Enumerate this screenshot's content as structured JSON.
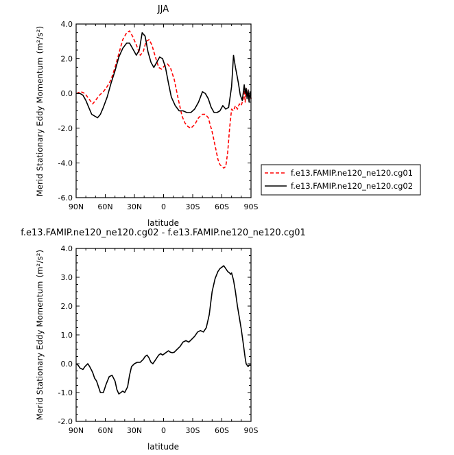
{
  "chart_data": [
    {
      "type": "line",
      "title": "JJA",
      "xlabel": "latitude",
      "ylabel_main": "Merid Stationary Eddy Momentum",
      "ylabel_unit": "(m²/s²)",
      "xlim": [
        90,
        -90
      ],
      "ylim": [
        -6.0,
        4.0
      ],
      "xticks": [
        90,
        60,
        30,
        0,
        -30,
        -60,
        -90
      ],
      "xticklabels": [
        "90N",
        "60N",
        "30N",
        "0",
        "30S",
        "60S",
        "90S"
      ],
      "yticks": [
        -6.0,
        -4.0,
        -2.0,
        0.0,
        2.0,
        4.0
      ],
      "yticklabels": [
        "-6.0",
        "-4.0",
        "-2.0",
        "0.0",
        "2.0",
        "4.0"
      ],
      "legend_position": "right",
      "series": [
        {
          "name": "f.e13.FAMIP.ne120_ne120.cg01",
          "color": "#ff0000",
          "dash": true,
          "x": [
            90,
            85,
            81,
            77,
            73,
            70,
            66,
            62,
            58,
            54,
            50,
            46,
            42,
            38,
            35,
            32,
            28,
            24,
            21,
            18,
            15,
            12,
            9,
            5,
            2,
            -1,
            -4,
            -7,
            -11,
            -15,
            -19,
            -22,
            -25,
            -28,
            -32,
            -36,
            -40,
            -43,
            -46,
            -50,
            -53,
            -56,
            -58,
            -60,
            -62,
            -64,
            -66,
            -68,
            -70,
            -72,
            -74,
            -76,
            -78,
            -80,
            -82,
            -83,
            -84,
            -85,
            -86,
            -87,
            -88,
            -89,
            -90
          ],
          "y": [
            0.0,
            0.1,
            0.0,
            -0.3,
            -0.6,
            -0.4,
            -0.1,
            0.1,
            0.4,
            0.8,
            1.5,
            2.3,
            3.1,
            3.5,
            3.6,
            3.3,
            2.8,
            2.2,
            2.4,
            3.0,
            3.1,
            2.8,
            2.2,
            1.5,
            1.4,
            1.6,
            1.7,
            1.5,
            0.8,
            -0.3,
            -1.3,
            -1.7,
            -1.9,
            -2.0,
            -1.8,
            -1.4,
            -1.2,
            -1.2,
            -1.4,
            -2.2,
            -3.0,
            -3.8,
            -4.1,
            -4.2,
            -4.3,
            -4.2,
            -3.4,
            -2.0,
            -0.9,
            -1.0,
            -0.7,
            -0.9,
            -0.6,
            -0.7,
            -0.3,
            0.2,
            -0.5,
            0.3,
            -0.2,
            0.2,
            -0.4,
            0.0,
            -0.3
          ]
        },
        {
          "name": "f.e13.FAMIP.ne120_ne120.cg02",
          "color": "#000000",
          "dash": false,
          "x": [
            90,
            86,
            83,
            80,
            77,
            74,
            71,
            68,
            65,
            62,
            58,
            54,
            50,
            46,
            42,
            38,
            35,
            32,
            28,
            25,
            22,
            19,
            16,
            13,
            10,
            7,
            4,
            1,
            -2,
            -5,
            -8,
            -12,
            -16,
            -20,
            -24,
            -28,
            -32,
            -36,
            -40,
            -43,
            -46,
            -49,
            -52,
            -55,
            -58,
            -61,
            -64,
            -67,
            -70,
            -72,
            -74,
            -75,
            -77,
            -79,
            -81,
            -83,
            -84,
            -85,
            -86,
            -87,
            -88,
            -89,
            -90
          ],
          "y": [
            0.0,
            0.0,
            -0.1,
            -0.4,
            -0.8,
            -1.2,
            -1.3,
            -1.4,
            -1.2,
            -0.8,
            -0.2,
            0.6,
            1.3,
            2.1,
            2.6,
            2.9,
            2.9,
            2.6,
            2.2,
            2.5,
            3.5,
            3.3,
            2.4,
            1.8,
            1.5,
            1.8,
            2.1,
            2.0,
            1.5,
            0.6,
            -0.2,
            -0.7,
            -1.0,
            -1.0,
            -1.1,
            -1.1,
            -0.9,
            -0.5,
            0.1,
            0.0,
            -0.3,
            -0.8,
            -1.1,
            -1.1,
            -1.0,
            -0.7,
            -0.9,
            -0.8,
            0.4,
            2.2,
            1.5,
            1.2,
            0.6,
            -0.1,
            -0.4,
            0.5,
            0.0,
            0.3,
            -0.3,
            0.2,
            -0.5,
            0.1,
            -0.3
          ]
        }
      ]
    },
    {
      "type": "line",
      "title": "f.e13.FAMIP.ne120_ne120.cg02 - f.e13.FAMIP.ne120_ne120.cg01",
      "xlabel": "latitude",
      "ylabel_main": "Merid Stationary Eddy Momentum",
      "ylabel_unit": "(m²/s²)",
      "xlim": [
        90,
        -90
      ],
      "ylim": [
        -2.0,
        4.0
      ],
      "xticks": [
        90,
        60,
        30,
        0,
        -30,
        -60,
        -90
      ],
      "xticklabels": [
        "90N",
        "60N",
        "30N",
        "0",
        "30S",
        "60S",
        "90S"
      ],
      "yticks": [
        -2.0,
        -1.0,
        0.0,
        1.0,
        2.0,
        3.0,
        4.0
      ],
      "yticklabels": [
        "-2.0",
        "-1.0",
        "0.0",
        "1.0",
        "2.0",
        "3.0",
        "4.0"
      ],
      "series": [
        {
          "color": "#000000",
          "dash": false,
          "x": [
            90,
            88,
            86,
            83,
            81,
            78,
            76,
            73,
            71,
            69,
            67,
            65,
            62,
            59,
            56,
            53,
            50,
            48,
            46,
            44,
            42,
            40,
            37,
            35,
            33,
            30,
            27,
            24,
            21,
            19,
            17,
            15,
            13,
            11,
            9,
            7,
            5,
            3,
            1,
            -1,
            -3,
            -5,
            -7,
            -9,
            -11,
            -14,
            -17,
            -20,
            -23,
            -26,
            -29,
            -32,
            -35,
            -38,
            -41,
            -44,
            -47,
            -50,
            -53,
            -56,
            -58,
            -60,
            -62,
            -64,
            -66,
            -68,
            -69,
            -70,
            -72,
            -74,
            -76,
            -78,
            -80,
            -82,
            -84,
            -85,
            -86,
            -87,
            -88,
            -90
          ],
          "y": [
            0.0,
            -0.05,
            -0.15,
            -0.2,
            -0.1,
            0.0,
            -0.1,
            -0.3,
            -0.5,
            -0.6,
            -0.8,
            -1.0,
            -1.0,
            -0.7,
            -0.45,
            -0.4,
            -0.6,
            -0.9,
            -1.05,
            -1.0,
            -0.95,
            -1.0,
            -0.8,
            -0.4,
            -0.1,
            0.0,
            0.05,
            0.05,
            0.15,
            0.25,
            0.3,
            0.2,
            0.05,
            0.0,
            0.1,
            0.2,
            0.3,
            0.35,
            0.3,
            0.35,
            0.4,
            0.45,
            0.4,
            0.38,
            0.4,
            0.5,
            0.6,
            0.75,
            0.8,
            0.75,
            0.85,
            0.95,
            1.1,
            1.15,
            1.1,
            1.25,
            1.7,
            2.5,
            2.95,
            3.2,
            3.3,
            3.35,
            3.4,
            3.3,
            3.2,
            3.15,
            3.1,
            3.15,
            2.9,
            2.5,
            2.0,
            1.6,
            1.2,
            0.7,
            0.2,
            0.0,
            -0.05,
            -0.1,
            -0.05,
            -0.05
          ]
        }
      ]
    }
  ]
}
